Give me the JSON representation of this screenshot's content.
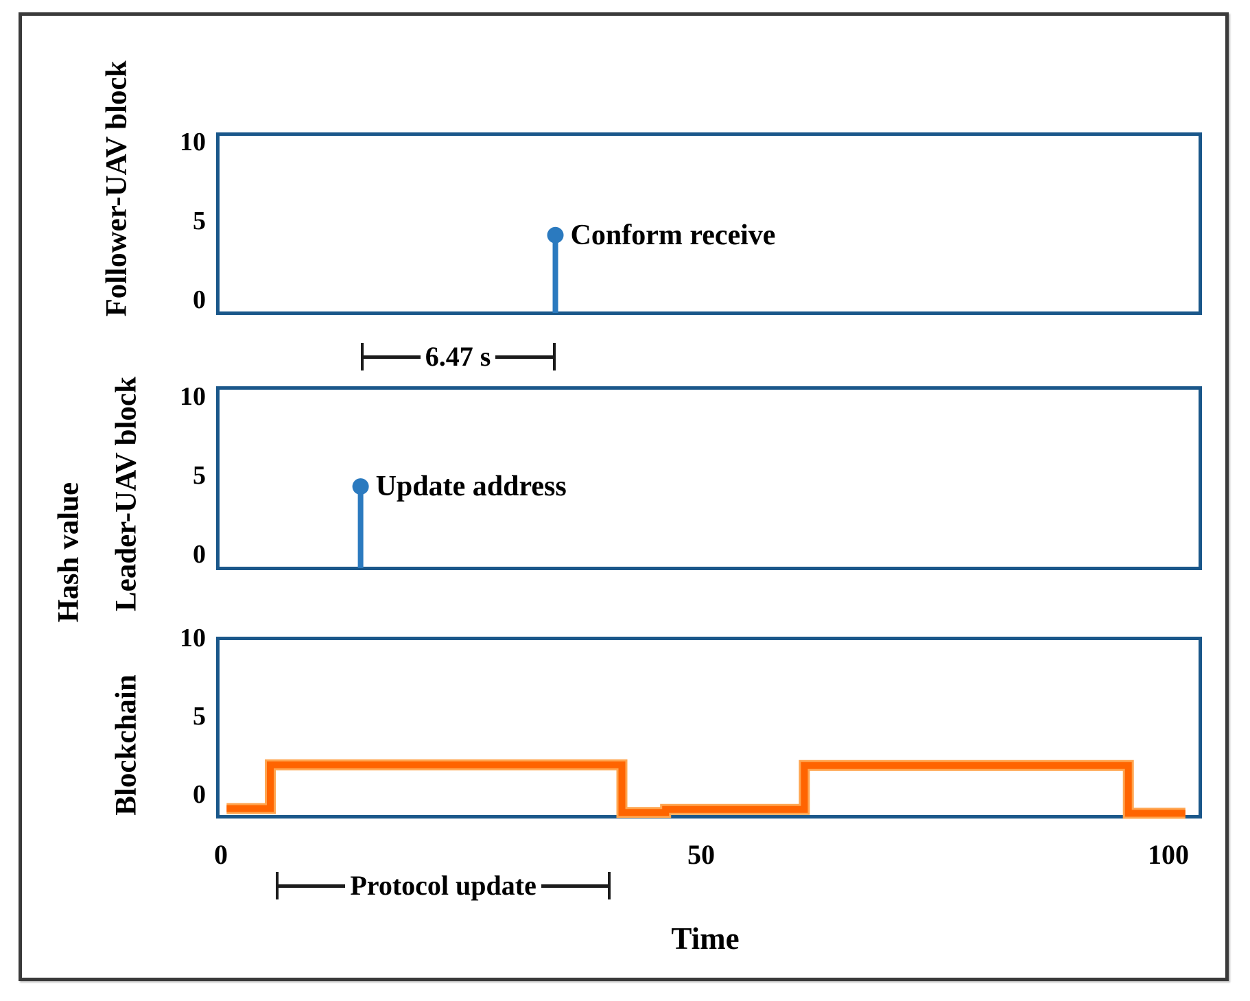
{
  "figure": {
    "ylabel": "Hash value",
    "xlabel": "Time",
    "x_ticks": [
      "0",
      "50",
      "100"
    ],
    "y_ticks": [
      "10",
      "5",
      "0"
    ],
    "colors": {
      "box_border": "#1a578a",
      "stem": "#2b7abf",
      "wave": "#ff6400",
      "wave_halo": "#ffa54f",
      "frame": "#3a3a3a",
      "annotation": "#1b1b1b",
      "text": "#000000"
    }
  },
  "chart_data": [
    {
      "type": "stem",
      "ylabel": "Follower-UAV block",
      "xlim": [
        0,
        100
      ],
      "ylim": [
        0,
        10
      ],
      "x": [
        35.2
      ],
      "y": [
        4.1
      ],
      "point_label": "Conform receive"
    },
    {
      "type": "stem",
      "ylabel": "Leader-UAV block",
      "xlim": [
        0,
        100
      ],
      "ylim": [
        0,
        10
      ],
      "x": [
        14.7
      ],
      "y": [
        4.3
      ],
      "point_label": "Update address"
    },
    {
      "type": "line",
      "ylabel": "Blockchain",
      "xlim": [
        0,
        100
      ],
      "ylim": [
        0,
        10
      ],
      "x": [
        0.6,
        5.2,
        5.2,
        42.2,
        42.2,
        46.8,
        46.8,
        61.4,
        61.4,
        95.5,
        95.5,
        101.5
      ],
      "y": [
        -0.9,
        -0.9,
        1.9,
        1.9,
        -1.15,
        -1.15,
        -0.95,
        -0.95,
        1.85,
        1.85,
        -1.2,
        -1.2
      ]
    }
  ],
  "annotations": {
    "delay": {
      "label": "6.47 s",
      "from_t": 14.7,
      "to_t": 35.2
    },
    "protocol": {
      "label": "Protocol update",
      "from_t": 5.8,
      "to_t": 41.0
    }
  }
}
